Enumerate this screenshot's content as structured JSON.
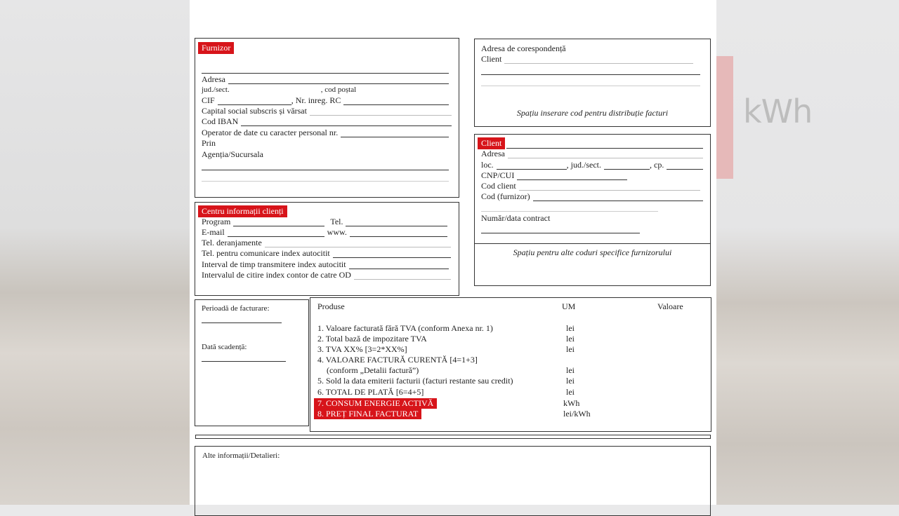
{
  "background": {
    "watermark": "kWh"
  },
  "furnizor": {
    "title": "Furnizor",
    "adresa": "Adresa",
    "jud": "jud./sect.",
    "cod_postal": ", cod poștal",
    "cif": "CIF",
    "nr_inreg": ", Nr. inreg. RC",
    "capital": "Capital social subscris și vărsat",
    "iban": "Cod IBAN",
    "operator": "Operator de date cu caracter personal nr.",
    "prin": "Prin",
    "agentia": "Agenția/Sucursala"
  },
  "corespondenta": {
    "title": "Adresa de corespondență",
    "client": "Client",
    "note": "Spațiu inserare cod pentru distribuție facturi"
  },
  "client": {
    "title": "Client",
    "adresa": "Adresa",
    "loc": "loc.",
    "jud": ", jud./sect.",
    "cp": ", cp.",
    "cnp": "CNP/CUI",
    "cod_client": "Cod client",
    "cod_furnizor": "Cod (furnizor)",
    "contract": "Număr/data contract",
    "note": "Spațiu pentru alte coduri specifice furnizorului"
  },
  "centru": {
    "title": "Centru informații clienți",
    "program": "Program",
    "tel": "Tel.",
    "email": "E-mail",
    "www": "www.",
    "deranjamente": "Tel. deranjamente",
    "comunicare": "Tel. pentru comunicare index autocitit",
    "interval": "Interval de timp transmitere index autocitit",
    "citire": "Intervalul de citire index contor de catre OD"
  },
  "perioada": {
    "label": "Perioadă de facturare:",
    "scadenta": "Dată scadență:"
  },
  "produse": {
    "headers": {
      "produse": "Produse",
      "um": "UM",
      "valoare": "Valoare"
    },
    "rows": [
      {
        "label": "1. Valoare facturată fără TVA (conform Anexa nr. 1)",
        "um": "lei"
      },
      {
        "label": "2. Total bază de impozitare TVA",
        "um": "lei"
      },
      {
        "label": "3. TVA XX% [3=2*XX%]",
        "um": "lei"
      },
      {
        "label": "4. VALOARE FACTURĂ CURENTĂ [4=1+3]",
        "um": ""
      },
      {
        "label": "(conform „Detalii factură”)",
        "um": "lei"
      },
      {
        "label": "5. Sold la data emiterii facturii (facturi restante sau credit)",
        "um": "lei"
      },
      {
        "label": "6. TOTAL DE PLATĂ [6=4+5]",
        "um": "lei"
      },
      {
        "label": "7. CONSUM ENERGIE ACTIVĂ",
        "um": "kWh",
        "highlight": true
      },
      {
        "label": "8. PREȚ FINAL FACTURAT",
        "um": "lei/kWh",
        "highlight": true
      }
    ]
  },
  "alte": {
    "label": "Alte informații/Detalieri:"
  },
  "colors": {
    "accent": "#d7141a"
  }
}
